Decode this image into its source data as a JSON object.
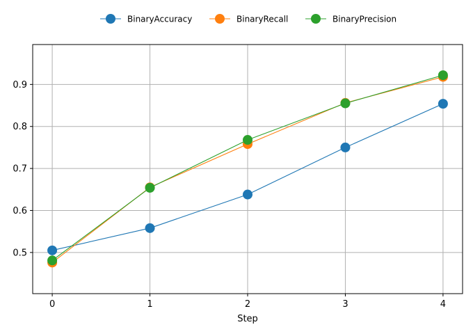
{
  "chart_data": {
    "type": "line",
    "title": "",
    "xlabel": "Step",
    "ylabel": "",
    "x": [
      0,
      1,
      2,
      3,
      4
    ],
    "xticks": [
      0,
      1,
      2,
      3,
      4
    ],
    "xlim": [
      -0.2,
      4.2
    ],
    "yticks": [
      0.5,
      0.6,
      0.7,
      0.8,
      0.9
    ],
    "ylim": [
      0.402,
      0.995
    ],
    "grid": true,
    "legend": "top-center-outside",
    "series": [
      {
        "name": "BinaryAccuracy",
        "color": "#1f77b4",
        "values": [
          0.505,
          0.558,
          0.638,
          0.75,
          0.854
        ]
      },
      {
        "name": "BinaryRecall",
        "color": "#ff7f0e",
        "values": [
          0.476,
          0.655,
          0.758,
          0.856,
          0.918
        ]
      },
      {
        "name": "BinaryPrecision",
        "color": "#2ca02c",
        "values": [
          0.481,
          0.654,
          0.768,
          0.855,
          0.922
        ]
      }
    ]
  }
}
